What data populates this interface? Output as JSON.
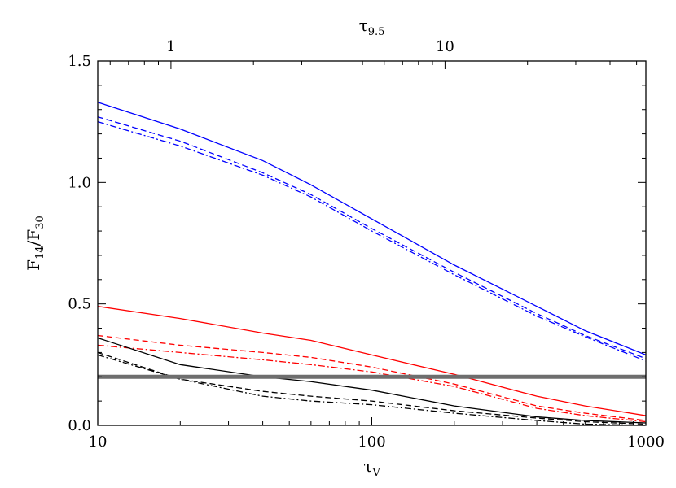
{
  "chart_data": {
    "type": "line",
    "xscale": "log",
    "xlim": [
      10,
      1000
    ],
    "ylim": [
      0.0,
      1.5
    ],
    "grid": false,
    "xlabel": {
      "main": "τ",
      "sub": "V"
    },
    "ylabel": {
      "a": "F",
      "a_sub": "14",
      "slash": "/",
      "b": "F",
      "b_sub": "30"
    },
    "top_axis": {
      "label": {
        "main": "τ",
        "sub": "9.5"
      },
      "ticks": [
        {
          "label": "1",
          "tau_v": 18.5
        },
        {
          "label": "10",
          "tau_v": 185
        }
      ]
    },
    "x_ticks": [
      "10",
      "100",
      "1000"
    ],
    "y_ticks": [
      "0.0",
      "0.5",
      "1.0",
      "1.5"
    ],
    "hline": {
      "y": 0.2,
      "color": "#6e6e6e"
    },
    "series": [
      {
        "color": "#0000ff",
        "style": "solid",
        "x": [
          10,
          20,
          40,
          60,
          100,
          200,
          400,
          600,
          1000
        ],
        "y": [
          1.33,
          1.22,
          1.09,
          0.99,
          0.85,
          0.66,
          0.49,
          0.39,
          0.29
        ]
      },
      {
        "color": "#0000ff",
        "style": "dashed",
        "x": [
          10,
          20,
          40,
          60,
          100,
          200,
          400,
          600,
          1000
        ],
        "y": [
          1.27,
          1.17,
          1.04,
          0.95,
          0.81,
          0.63,
          0.46,
          0.37,
          0.275
        ]
      },
      {
        "color": "#0000ff",
        "style": "dashdot",
        "x": [
          10,
          20,
          40,
          60,
          100,
          200,
          400,
          600,
          1000
        ],
        "y": [
          1.25,
          1.15,
          1.03,
          0.94,
          0.8,
          0.62,
          0.45,
          0.365,
          0.265
        ]
      },
      {
        "color": "#ff0000",
        "style": "solid",
        "x": [
          10,
          20,
          40,
          60,
          100,
          200,
          400,
          600,
          1000
        ],
        "y": [
          0.49,
          0.44,
          0.38,
          0.35,
          0.29,
          0.21,
          0.12,
          0.08,
          0.04
        ]
      },
      {
        "color": "#ff0000",
        "style": "dashed",
        "x": [
          10,
          20,
          40,
          60,
          100,
          200,
          400,
          600,
          1000
        ],
        "y": [
          0.37,
          0.33,
          0.3,
          0.28,
          0.24,
          0.17,
          0.08,
          0.05,
          0.02
        ]
      },
      {
        "color": "#ff0000",
        "style": "dashdot",
        "x": [
          10,
          20,
          40,
          60,
          100,
          200,
          400,
          600,
          1000
        ],
        "y": [
          0.33,
          0.3,
          0.27,
          0.25,
          0.22,
          0.16,
          0.07,
          0.04,
          0.015
        ]
      },
      {
        "color": "#000000",
        "style": "solid",
        "x": [
          10,
          20,
          40,
          60,
          100,
          200,
          400,
          600,
          1000
        ],
        "y": [
          0.36,
          0.25,
          0.2,
          0.18,
          0.145,
          0.08,
          0.035,
          0.02,
          0.01
        ]
      },
      {
        "color": "#000000",
        "style": "dashed",
        "x": [
          10,
          20,
          40,
          60,
          100,
          200,
          400,
          600,
          1000
        ],
        "y": [
          0.3,
          0.19,
          0.14,
          0.12,
          0.1,
          0.06,
          0.03,
          0.015,
          0.005
        ]
      },
      {
        "color": "#000000",
        "style": "dashdot",
        "x": [
          10,
          20,
          40,
          60,
          100,
          200,
          400,
          600,
          1000
        ],
        "y": [
          0.29,
          0.19,
          0.12,
          0.1,
          0.085,
          0.05,
          0.02,
          0.005,
          0.0
        ]
      }
    ]
  }
}
